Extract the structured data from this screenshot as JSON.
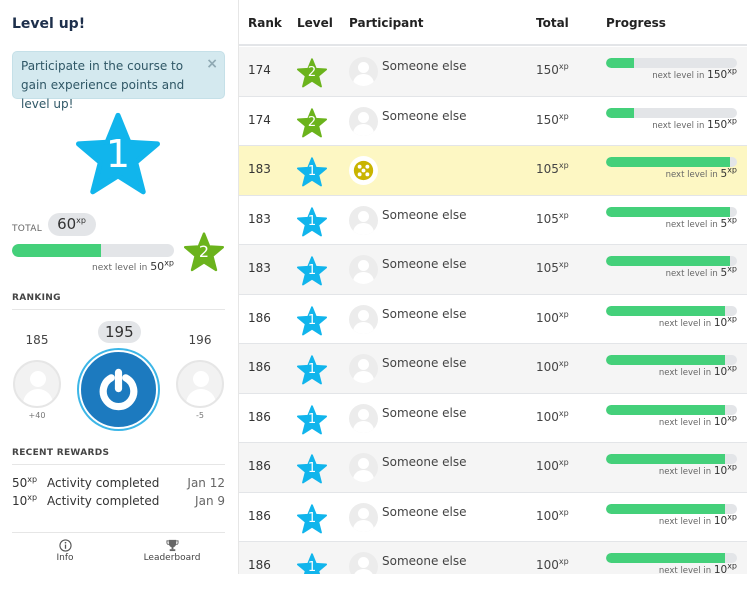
{
  "sidebar": {
    "title": "Level up!",
    "alert": {
      "text": "Participate in the course to gain experience points and level up!",
      "close": "×"
    },
    "current_level": "1",
    "total": {
      "label": "TOTAL",
      "value": "60",
      "unit": "xp"
    },
    "progress": {
      "percent": 55,
      "next_label": "next level in",
      "next_value": "50",
      "unit": "xp"
    },
    "next_level": "2",
    "ranking": {
      "heading": "RANKING",
      "above": {
        "rank": "185",
        "diff": "+40"
      },
      "me": {
        "rank": "195"
      },
      "below": {
        "rank": "196",
        "diff": "-5"
      }
    },
    "rewards": {
      "heading": "RECENT REWARDS",
      "items": [
        {
          "amount": "50",
          "unit": "xp",
          "description": "Activity completed",
          "date": "Jan 12"
        },
        {
          "amount": "10",
          "unit": "xp",
          "description": "Activity completed",
          "date": "Jan 9"
        }
      ]
    },
    "footer": {
      "info_label": "Info",
      "leaderboard_label": "Leaderboard"
    }
  },
  "colors": {
    "level1": "#11b5ec",
    "level2": "#6bb31c",
    "progress_fill": "#44d07a",
    "progress_track": "#e3e5e8",
    "highlight_row": "#fdf7c3",
    "alert_bg": "#d4e9ef"
  },
  "table": {
    "headers": {
      "rank": "Rank",
      "level": "Level",
      "participant": "Participant",
      "total": "Total",
      "progress": "Progress"
    },
    "next_label": "next level in",
    "unit": "xp",
    "rows": [
      {
        "rank": "174",
        "level": "2",
        "participant": "Someone else",
        "total": "150",
        "next": "150",
        "percent": 21,
        "me": false
      },
      {
        "rank": "174",
        "level": "2",
        "participant": "Someone else",
        "total": "150",
        "next": "150",
        "percent": 21,
        "me": false
      },
      {
        "rank": "183",
        "level": "1",
        "participant": "",
        "total": "105",
        "next": "5",
        "percent": 95,
        "me": true
      },
      {
        "rank": "183",
        "level": "1",
        "participant": "Someone else",
        "total": "105",
        "next": "5",
        "percent": 95,
        "me": false
      },
      {
        "rank": "183",
        "level": "1",
        "participant": "Someone else",
        "total": "105",
        "next": "5",
        "percent": 95,
        "me": false
      },
      {
        "rank": "186",
        "level": "1",
        "participant": "Someone else",
        "total": "100",
        "next": "10",
        "percent": 91,
        "me": false
      },
      {
        "rank": "186",
        "level": "1",
        "participant": "Someone else",
        "total": "100",
        "next": "10",
        "percent": 91,
        "me": false
      },
      {
        "rank": "186",
        "level": "1",
        "participant": "Someone else",
        "total": "100",
        "next": "10",
        "percent": 91,
        "me": false
      },
      {
        "rank": "186",
        "level": "1",
        "participant": "Someone else",
        "total": "100",
        "next": "10",
        "percent": 91,
        "me": false
      },
      {
        "rank": "186",
        "level": "1",
        "participant": "Someone else",
        "total": "100",
        "next": "10",
        "percent": 91,
        "me": false
      },
      {
        "rank": "186",
        "level": "1",
        "participant": "Someone else",
        "total": "100",
        "next": "10",
        "percent": 91,
        "me": false
      }
    ]
  }
}
